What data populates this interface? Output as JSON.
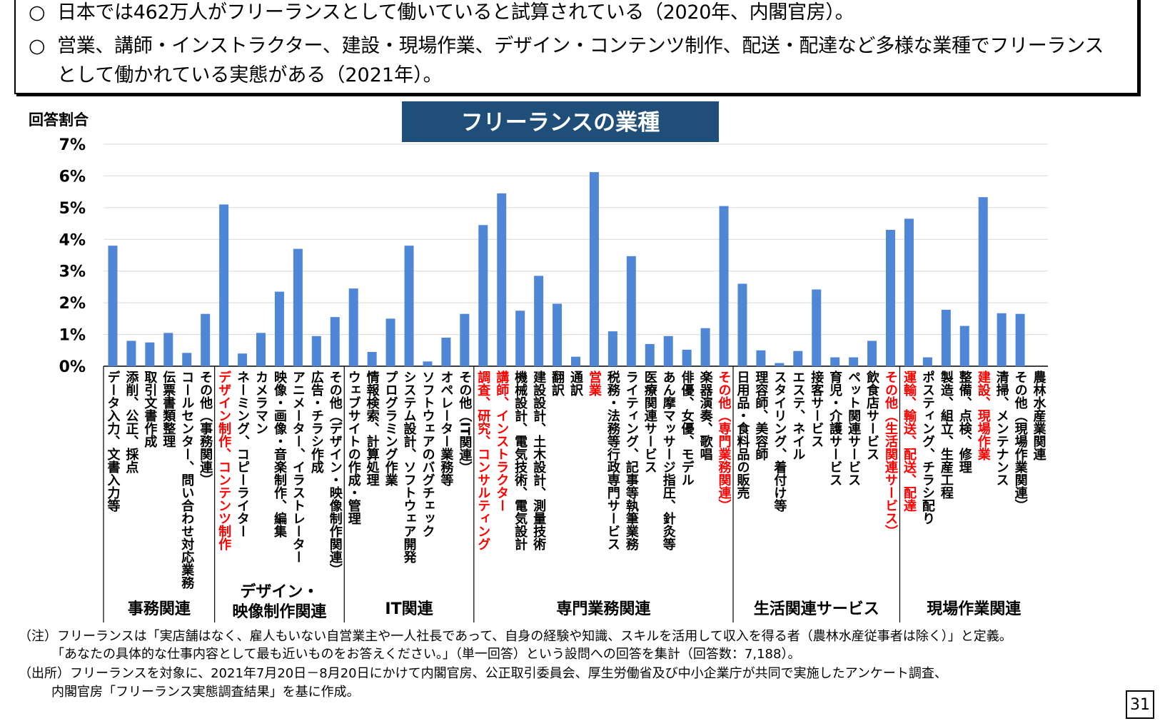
{
  "summary": {
    "bullet_mark": "○",
    "line1": "日本では462万人がフリーランスとして働いていると試算されている（2020年、内閣官房）。",
    "line2a": "営業、講師・インストラクター、建設・現場作業、デザイン・コンテンツ制作、配送・配達など多様な業種でフリーランス",
    "line2b": "として働かれている実態がある（2021年）。"
  },
  "chart_data": {
    "type": "bar",
    "title": "フリーランスの業種",
    "ylabel": "回答割合",
    "xlabel": "",
    "ylim": [
      0,
      7
    ],
    "yticks": [
      "0%",
      "1%",
      "2%",
      "3%",
      "4%",
      "5%",
      "6%",
      "7%"
    ],
    "grid": true,
    "bar_color": "#4f86d6",
    "highlight_color": "#ff0000",
    "title_bg": "#1f4e79",
    "categories": [
      "データ入力、文書入力等",
      "添削、公正、採点",
      "取引文書作成",
      "伝票書類整理",
      "コールセンター、問い合わせ対応業務",
      "その他（事務関連）",
      "デザイン制作、コンテンツ制作",
      "ネーミング、コピーライター",
      "カメラマン",
      "映像・画像・音楽制作、編集",
      "アニメーター、イラストレーター",
      "広告・チラシ作成",
      "その他（デザイン・映像制作関連）",
      "ウェブサイトの作成・管理",
      "情報検索、計算処理",
      "プログラミング作業",
      "システム設計、ソフトウェア開発",
      "ソフトウェアのバグチェック",
      "オペレーター業務等",
      "その他（IT関連）",
      "調査、研究、コンサルティング",
      "講師、インストラクター",
      "機械設計、電気技術、電気設計",
      "建設設計、土木設計、測量技術",
      "翻訳",
      "通訳",
      "営業",
      "税務・法務等行政専門サービス",
      "ライティング、記事等執筆業務",
      "医療関連サービス",
      "あん摩マッサージ指圧、針灸等",
      "俳優、女優、モデル",
      "楽器演奏、歌唱",
      "その他（専門業務関連）",
      "日用品・食料品の販売",
      "理容師、美容師",
      "スタイリング、着付け等",
      "エステ、ネイル",
      "接客サービス",
      "育児・介護サービス",
      "ペット関連サービス",
      "飲食店サービス",
      "その他（生活関連サービス）",
      "運輸、輸送、配送、配達",
      "ポスティング、チラシ配り",
      "製造、組立、生産工程",
      "整備、点検、修理",
      "建設、現場作業",
      "清掃、メンテナンス",
      "その他（現場作業関連）",
      "農林水産業関連"
    ],
    "values": [
      3.8,
      0.8,
      0.75,
      1.05,
      0.42,
      1.65,
      5.1,
      0.4,
      1.05,
      2.35,
      3.7,
      0.95,
      1.55,
      2.45,
      0.45,
      1.5,
      3.8,
      0.15,
      0.9,
      1.65,
      4.45,
      5.45,
      1.75,
      2.85,
      1.97,
      0.3,
      6.12,
      1.1,
      3.47,
      0.7,
      0.95,
      0.52,
      1.2,
      5.05,
      2.6,
      0.5,
      0.1,
      0.48,
      2.42,
      0.28,
      0.28,
      0.8,
      4.3,
      4.65,
      0.28,
      1.78,
      1.27,
      5.33,
      1.67,
      1.65,
      0
    ],
    "highlighted": [
      6,
      20,
      21,
      26,
      33,
      42,
      43,
      47
    ],
    "groups": [
      {
        "name": "事務関連",
        "start": 0,
        "end": 5
      },
      {
        "name": "デザイン・\n映像制作関連",
        "start": 6,
        "end": 12
      },
      {
        "name": "IT関連",
        "start": 13,
        "end": 19
      },
      {
        "name": "専門業務関連",
        "start": 20,
        "end": 33
      },
      {
        "name": "生活関連サービス",
        "start": 34,
        "end": 42
      },
      {
        "name": "現場作業関連",
        "start": 43,
        "end": 50
      }
    ]
  },
  "notes": {
    "note1": "（注）フリーランスは「実店舗はなく、雇人もいない自営業主や一人社長であって、自身の経験や知識、スキルを活用して収入を得る者（農林水産従事者は除く）」と定義。",
    "note2": "「あなたの具体的な仕事内容として最も近いものをお答えください。」（単一回答）という設問への回答を集計（回答数：7,188）。",
    "source1": "（出所）フリーランスを対象に、2021年7月20日－8月20日にかけて内閣官房、公正取引委員会、厚生労働省及び中小企業庁が共同で実施したアンケート調査、",
    "source2": "内閣官房「フリーランス実態調査結果」を基に作成。"
  },
  "page_number": "31"
}
